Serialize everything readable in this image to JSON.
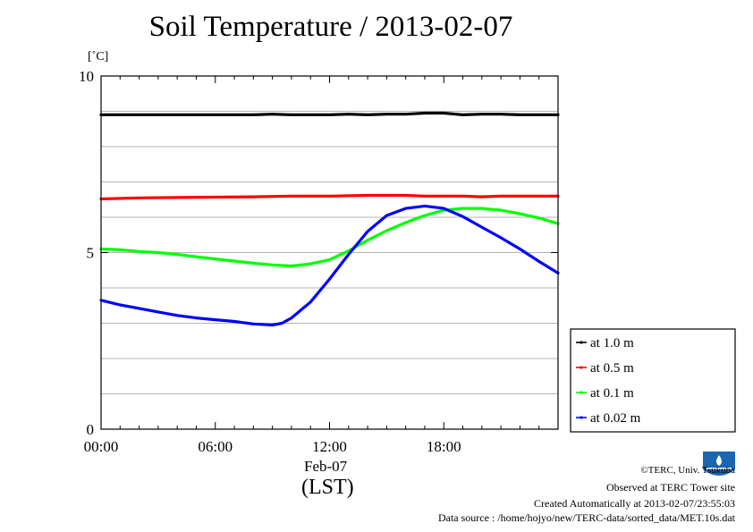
{
  "header": {
    "title": "Soil Temperature / 2013-02-07",
    "y_unit": "[˚C]"
  },
  "axis_labels": {
    "date": "Feb-07",
    "timezone": "(LST)"
  },
  "footer": {
    "copyright": "©TERC, Univ. Tsukuba",
    "site": "Observed at TERC Tower site",
    "created": "Created Automatically at 2013-02-07/23:55:03",
    "source": "Data source : /home/hojyo/new/TERC-data/sorted_data/MET.10s.dat"
  },
  "logo": {
    "name": "TERC logo",
    "color": "#1a66b3"
  },
  "chart_data": {
    "type": "line",
    "title": "Soil Temperature / 2013-02-07",
    "xlabel": "(LST)",
    "ylabel": "[˚C]",
    "xlim": [
      0,
      24
    ],
    "ylim": [
      0,
      10
    ],
    "x_ticks": [
      0,
      6,
      12,
      18
    ],
    "x_tick_labels": [
      "00:00",
      "06:00",
      "12:00",
      "18:00"
    ],
    "y_ticks": [
      0,
      5,
      10
    ],
    "y_tick_labels": [
      "0",
      "5",
      "10"
    ],
    "grid": "horizontal",
    "legend_position": "right",
    "series": [
      {
        "name": "at 1.0 m",
        "color": "#000000",
        "x": [
          0,
          2,
          4,
          6,
          8,
          9,
          10,
          11,
          12,
          13,
          14,
          15,
          16,
          17,
          18,
          19,
          20,
          21,
          22,
          23,
          24
        ],
        "y": [
          8.9,
          8.9,
          8.9,
          8.9,
          8.9,
          8.92,
          8.9,
          8.9,
          8.9,
          8.92,
          8.9,
          8.92,
          8.92,
          8.95,
          8.95,
          8.9,
          8.92,
          8.92,
          8.9,
          8.9,
          8.9
        ]
      },
      {
        "name": "at 0.5 m",
        "color": "#ff0000",
        "x": [
          0,
          2,
          4,
          6,
          8,
          10,
          12,
          14,
          15,
          16,
          17,
          18,
          19,
          20,
          21,
          22,
          23,
          24
        ],
        "y": [
          6.52,
          6.55,
          6.56,
          6.57,
          6.58,
          6.6,
          6.6,
          6.62,
          6.62,
          6.62,
          6.6,
          6.6,
          6.6,
          6.58,
          6.6,
          6.6,
          6.6,
          6.6
        ]
      },
      {
        "name": "at 0.1 m",
        "color": "#00ff00",
        "x": [
          0,
          1,
          2,
          3,
          4,
          5,
          6,
          7,
          8,
          9,
          10,
          11,
          12,
          13,
          14,
          15,
          16,
          17,
          18,
          19,
          20,
          21,
          22,
          23,
          24
        ],
        "y": [
          5.1,
          5.08,
          5.03,
          5.0,
          4.95,
          4.88,
          4.82,
          4.76,
          4.7,
          4.65,
          4.62,
          4.68,
          4.8,
          5.05,
          5.35,
          5.62,
          5.85,
          6.05,
          6.2,
          6.25,
          6.25,
          6.2,
          6.1,
          5.98,
          5.82
        ]
      },
      {
        "name": "at 0.02 m",
        "color": "#0000ff",
        "x": [
          0,
          1,
          2,
          3,
          4,
          5,
          6,
          7,
          8,
          9,
          9.5,
          10,
          11,
          12,
          13,
          14,
          15,
          16,
          17,
          18,
          19,
          20,
          21,
          22,
          23,
          24
        ],
        "y": [
          3.65,
          3.52,
          3.42,
          3.32,
          3.22,
          3.15,
          3.1,
          3.05,
          2.98,
          2.95,
          3.0,
          3.15,
          3.6,
          4.25,
          4.95,
          5.6,
          6.05,
          6.25,
          6.32,
          6.25,
          6.02,
          5.72,
          5.42,
          5.1,
          4.75,
          4.42
        ]
      }
    ]
  }
}
